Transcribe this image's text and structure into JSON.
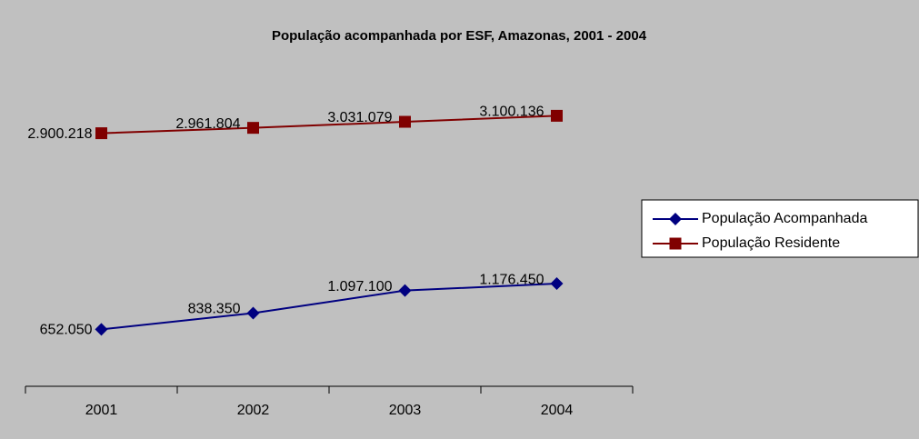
{
  "chart_data": {
    "type": "line",
    "title": "População acompanhada por ESF, Amazonas, 2001 - 2004",
    "categories": [
      "2001",
      "2002",
      "2003",
      "2004"
    ],
    "series": [
      {
        "name": "População Acompanhada",
        "color": "#000080",
        "marker": "diamond",
        "values": [
          652050,
          838350,
          1097100,
          1176450
        ],
        "value_labels": [
          "652.050",
          "838.350",
          "1.097.100",
          "1.176.450"
        ]
      },
      {
        "name": "População Residente",
        "color": "#800000",
        "marker": "square",
        "values": [
          2900218,
          2961804,
          3031079,
          3100136
        ],
        "value_labels": [
          "2.900.218",
          "2.961.804",
          "3.031.079",
          "3.100.136"
        ]
      }
    ],
    "ylim": [
      0,
      3500000
    ],
    "legend": "right"
  }
}
